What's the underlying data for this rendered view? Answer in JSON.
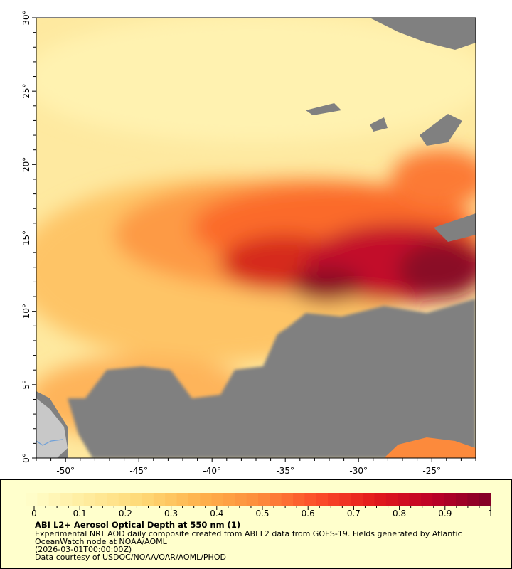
{
  "map": {
    "lon_range": [
      -52,
      -22
    ],
    "lat_range": [
      0,
      30
    ],
    "lon_ticks": [
      "-50°",
      "-45°",
      "-40°",
      "-35°",
      "-30°",
      "-25°"
    ],
    "lat_ticks": [
      "0°",
      "5°",
      "10°",
      "15°",
      "20°",
      "25°",
      "30°"
    ],
    "missing_data_color": "#808080",
    "land_color": "#c8c8c8",
    "river_color": "#6fa0d8"
  },
  "colorbar": {
    "range": [
      0,
      1
    ],
    "tick_labels": [
      "0",
      "0.1",
      "0.2",
      "0.3",
      "0.4",
      "0.5",
      "0.6",
      "0.7",
      "0.8",
      "0.9",
      "1"
    ],
    "palette": [
      "#ffffcc",
      "#ffeda0",
      "#fed976",
      "#feb24c",
      "#fd8d3c",
      "#fc4e2a",
      "#e31a1c",
      "#bd0026",
      "#800026"
    ]
  },
  "legend": {
    "title": "ABI L2+ Aerosol Optical Depth at 550 nm (1)",
    "line1": "Experimental NRT AOD daily composite created from ABI L2 data from GOES-19. Fields generated by Atlantic",
    "line2": "OceanWatch node at NOAA/AOML",
    "time": "(2026-03-01T00:00:00Z)",
    "credit": "Data courtesy of USDOC/NOAA/OAR/AOML/PHOD"
  }
}
